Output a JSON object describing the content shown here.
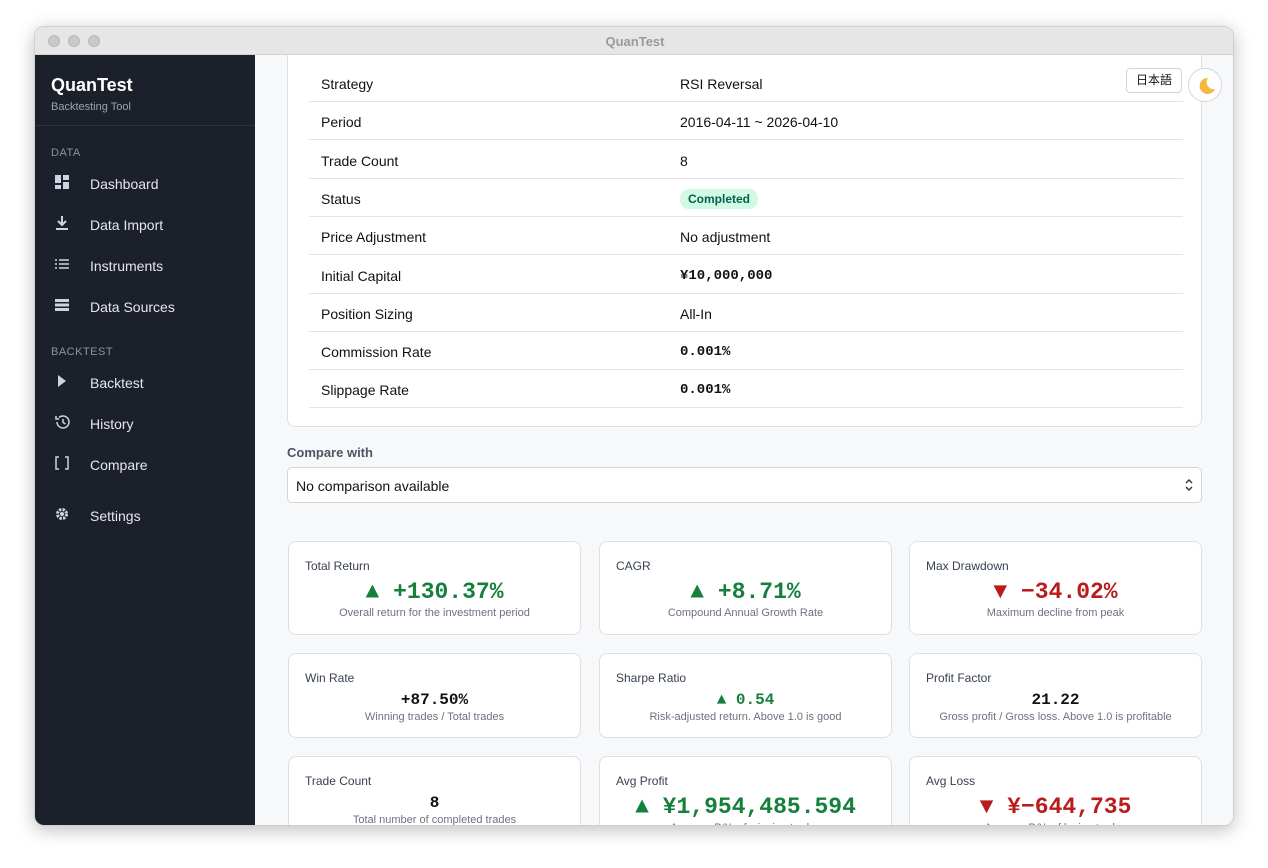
{
  "window": {
    "title": "QuanTest"
  },
  "sidebar": {
    "brand": "QuanTest",
    "subtitle": "Backtesting Tool",
    "sections": [
      {
        "label": "DATA",
        "items": [
          "Dashboard",
          "Data Import",
          "Instruments",
          "Data Sources"
        ]
      },
      {
        "label": "BACKTEST",
        "items": [
          "Backtest",
          "History",
          "Compare"
        ]
      }
    ],
    "settings": "Settings"
  },
  "header": {
    "language": "日本語"
  },
  "details": {
    "rows": [
      [
        "Strategy",
        "RSI Reversal"
      ],
      [
        "Period",
        "2016-04-11 ~ 2026-04-10"
      ],
      [
        "Trade Count",
        "8"
      ],
      [
        "Status",
        "Completed"
      ],
      [
        "Price Adjustment",
        "No adjustment"
      ],
      [
        "Initial Capital",
        "¥10,000,000"
      ],
      [
        "Position Sizing",
        "All-In"
      ],
      [
        "Commission Rate",
        "0.001%"
      ],
      [
        "Slippage Rate",
        "0.001%"
      ]
    ]
  },
  "compare": {
    "label": "Compare with",
    "selected": "No comparison available"
  },
  "metrics": [
    {
      "label": "Total Return",
      "value": "▲ +130.37%",
      "caption": "Overall return for the investment period"
    },
    {
      "label": "CAGR",
      "value": "▲ +8.71%",
      "caption": "Compound Annual Growth Rate"
    },
    {
      "label": "Max Drawdown",
      "value": "▼ −34.02%",
      "caption": "Maximum decline from peak"
    },
    {
      "label": "Win Rate",
      "value": "+87.50%",
      "caption": "Winning trades / Total trades"
    },
    {
      "label": "Sharpe Ratio",
      "value": "▲ 0.54",
      "caption": "Risk-adjusted return. Above 1.0 is good"
    },
    {
      "label": "Profit Factor",
      "value": "21.22",
      "caption": "Gross profit / Gross loss. Above 1.0 is profitable"
    },
    {
      "label": "Trade Count",
      "value": "8",
      "caption": "Total number of completed trades"
    },
    {
      "label": "Avg Profit",
      "value": "▲ ¥1,954,485.594",
      "caption": "Average P&L of winning trades"
    },
    {
      "label": "Avg Loss",
      "value": "▼ ¥−644,735",
      "caption": "Average P&L of losing trades"
    }
  ]
}
